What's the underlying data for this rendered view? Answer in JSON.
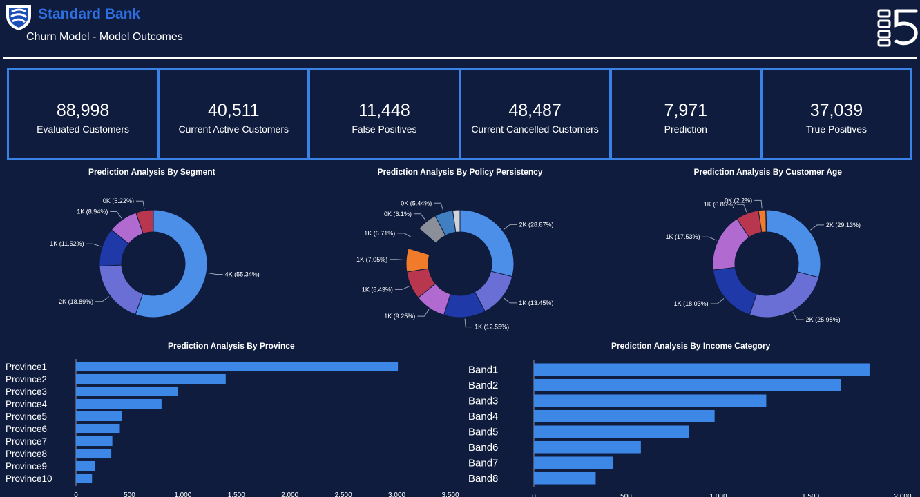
{
  "header": {
    "brand": "Standard Bank",
    "subtitle": "Churn Model - Model Outcomes",
    "logo_icon": "shield-icon",
    "corner_icon": "list-five-logo-icon"
  },
  "colors": {
    "background": "#0f1c3d",
    "accent": "#3b82e6",
    "brand": "#2d6fe0",
    "bar": "#3d87e6"
  },
  "kpis": [
    {
      "value": "88,998",
      "label": "Evaluated Customers"
    },
    {
      "value": "40,511",
      "label": "Current Active Customers"
    },
    {
      "value": "11,448",
      "label": "False Positives"
    },
    {
      "value": "48,487",
      "label": "Current Cancelled Customers"
    },
    {
      "value": "7,971",
      "label": "Prediction"
    },
    {
      "value": "37,039",
      "label": "True Positives"
    }
  ],
  "chart_data": [
    {
      "type": "pie",
      "title": "Prediction Analysis By Segment",
      "slices": [
        {
          "label": "4K (55.34%)",
          "value": 55.34,
          "color": "#4b8fe8"
        },
        {
          "label": "2K (18.89%)",
          "value": 18.89,
          "color": "#6a6fd6"
        },
        {
          "label": "1K (11.52%)",
          "value": 11.52,
          "color": "#1f3aa8"
        },
        {
          "label": "1K (8.94%)",
          "value": 8.94,
          "color": "#b06ad0"
        },
        {
          "label": "0K (5.22%)",
          "value": 5.22,
          "color": "#b8374f"
        }
      ]
    },
    {
      "type": "pie",
      "title": "Prediction Analysis By Policy Persistency",
      "slices": [
        {
          "label": "2K (28.87%)",
          "value": 28.87,
          "color": "#4b8fe8"
        },
        {
          "label": "1K (13.45%)",
          "value": 13.45,
          "color": "#6a6fd6"
        },
        {
          "label": "1K (12.55%)",
          "value": 12.55,
          "color": "#1f3aa8"
        },
        {
          "label": "1K (9.25%)",
          "value": 9.25,
          "color": "#b06ad0"
        },
        {
          "label": "1K (8.43%)",
          "value": 8.43,
          "color": "#b8374f"
        },
        {
          "label": "1K (7.05%)",
          "value": 7.05,
          "color": "#f07b2a"
        },
        {
          "label": "1K (6.71%)",
          "value": 6.71,
          "color": "#0f1c3d"
        },
        {
          "label": "0K (6.1%)",
          "value": 6.1,
          "color": "#8a8f99"
        },
        {
          "label": "0K (5.44%)",
          "value": 5.44,
          "color": "#3f7fc2"
        },
        {
          "label": "",
          "value": 2.15,
          "color": "#d0d4da"
        }
      ]
    },
    {
      "type": "pie",
      "title": "Prediction Analysis By Customer Age",
      "slices": [
        {
          "label": "2K (29.13%)",
          "value": 29.13,
          "color": "#4b8fe8"
        },
        {
          "label": "2K (25.98%)",
          "value": 25.98,
          "color": "#6a6fd6"
        },
        {
          "label": "1K (18.03%)",
          "value": 18.03,
          "color": "#1f3aa8"
        },
        {
          "label": "1K (17.53%)",
          "value": 17.53,
          "color": "#b06ad0"
        },
        {
          "label": "1K (6.85%)",
          "value": 6.85,
          "color": "#b8374f"
        },
        {
          "label": "0K (2.2%)",
          "value": 2.2,
          "color": "#f07b2a"
        },
        {
          "label": "",
          "value": 0.26,
          "color": "#d0d4da"
        }
      ]
    },
    {
      "type": "bar",
      "orientation": "horizontal",
      "title": "Prediction Analysis By Province",
      "categories": [
        "Province1",
        "Province2",
        "Province3",
        "Province4",
        "Province5",
        "Province6",
        "Province7",
        "Province8",
        "Province9",
        "Province10"
      ],
      "values": [
        3010,
        1400,
        950,
        800,
        430,
        410,
        340,
        330,
        180,
        150
      ],
      "xlim": [
        0,
        3500
      ],
      "xticks": [
        "0",
        "500",
        "1,000",
        "1,500",
        "2,000",
        "2,500",
        "3,000",
        "3,500"
      ]
    },
    {
      "type": "bar",
      "orientation": "horizontal",
      "title": "Prediction Analysis By Income Category",
      "categories": [
        "Band1",
        "Band2",
        "Band3",
        "Band4",
        "Band5",
        "Band6",
        "Band7",
        "Band8"
      ],
      "values": [
        1820,
        1665,
        1260,
        980,
        840,
        580,
        430,
        335
      ],
      "xlim": [
        0,
        2000
      ],
      "xticks": [
        "0",
        "500",
        "1,000",
        "1,500",
        "2,000"
      ]
    }
  ]
}
